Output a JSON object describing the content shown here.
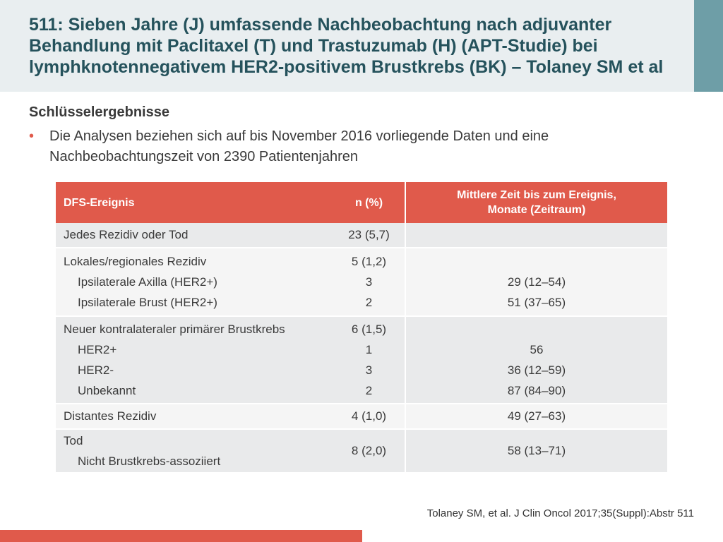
{
  "title": "511: Sieben Jahre (J) umfassende Nachbeobachtung nach adjuvanter\nBehandlung mit Paclitaxel (T) und Trastuzumab (H) (APT-Studie) bei\nlymphknotennegativem HER2-positivem Brustkrebs (BK) – Tolaney SM et al",
  "section_heading": "Schlüsselergebnisse",
  "bullet_text": "Die Analysen beziehen sich auf bis November 2016 vorliegende Daten und eine Nachbeobachtungszeit von 2390 Patientenjahren",
  "table": {
    "headers": [
      "DFS-Ereignis",
      "n (%)",
      "Mittlere Zeit bis zum Ereignis,\nMonate (Zeitraum)"
    ],
    "rows": [
      {
        "event": "Jedes Rezidiv oder Tod",
        "n": "23 (5,7)",
        "time": ""
      },
      {
        "event": "Lokales/regionales Rezidiv",
        "n": "5 (1,2)",
        "time": ""
      },
      {
        "event": "Ipsilaterale Axilla (HER2+)",
        "n": "3",
        "time": "29 (12–54)"
      },
      {
        "event": "Ipsilaterale Brust (HER2+)",
        "n": "2",
        "time": "51 (37–65)"
      },
      {
        "event": "Neuer kontralateraler primärer Brustkrebs",
        "n": "6 (1,5)",
        "time": ""
      },
      {
        "event": "HER2+",
        "n": "1",
        "time": "56"
      },
      {
        "event": "HER2-",
        "n": "3",
        "time": "36 (12–59)"
      },
      {
        "event": "Unbekannt",
        "n": "2",
        "time": "87 (84–90)"
      },
      {
        "event": "Distantes Rezidiv",
        "n": "4 (1,0)",
        "time": "49 (27–63)"
      },
      {
        "event": "Tod",
        "n": "",
        "time": ""
      },
      {
        "event": "Nicht Brustkrebs-assoziiert",
        "n": "8 (2,0)",
        "time": "58 (13–71)"
      }
    ]
  },
  "citation": "Tolaney SM, et al. J Clin Oncol 2017;35(Suppl):Abstr 511",
  "colors": {
    "accent_red": "#e05a4b",
    "title_teal": "#25525c",
    "title_band": "#e9eef0",
    "side_accent": "#6e9ea7",
    "row_shade": "#e9eaeb",
    "row_plain": "#f5f5f5"
  }
}
